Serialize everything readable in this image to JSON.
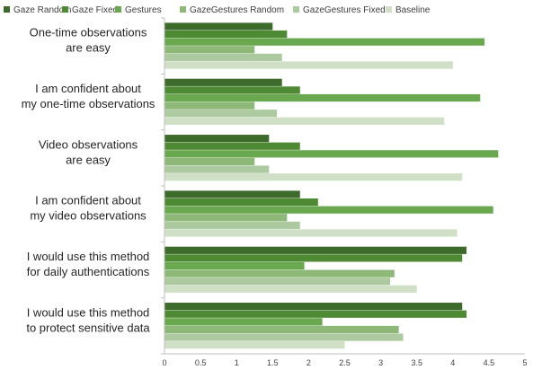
{
  "chart_data": {
    "type": "bar",
    "orientation": "horizontal",
    "categories": [
      [
        "One-time observations",
        "are easy"
      ],
      [
        "I am confident about",
        "my one-time observations"
      ],
      [
        "Video observations",
        "are easy"
      ],
      [
        "I am confident about",
        "my video observations"
      ],
      [
        "I would use this method",
        "for daily authentications"
      ],
      [
        "I would use this method",
        "to protect sensitive data"
      ]
    ],
    "series": [
      {
        "name": "Gaze Random",
        "color": "#3d6b2c",
        "values": [
          1.5,
          1.63,
          1.45,
          1.88,
          4.19,
          4.13
        ]
      },
      {
        "name": "Gaze Fixed",
        "color": "#4e8a34",
        "values": [
          1.7,
          1.88,
          1.88,
          2.13,
          4.13,
          4.19
        ]
      },
      {
        "name": "Gestures",
        "color": "#6aa84f",
        "values": [
          4.44,
          4.38,
          4.63,
          4.56,
          1.94,
          2.19
        ]
      },
      {
        "name": "GazeGestures Random",
        "color": "#8db878",
        "values": [
          1.25,
          1.25,
          1.25,
          1.7,
          3.19,
          3.25
        ]
      },
      {
        "name": "GazeGestures  Fixed",
        "color": "#adc99f",
        "values": [
          1.63,
          1.56,
          1.45,
          1.88,
          3.13,
          3.31
        ]
      },
      {
        "name": "Baseline",
        "color": "#cfe0c6",
        "values": [
          4.0,
          3.88,
          4.13,
          4.06,
          3.5,
          2.5
        ]
      }
    ],
    "xlim": [
      0,
      5
    ],
    "xticks": [
      "0",
      "0.5",
      "1",
      "1.5",
      "2",
      "2.5",
      "3",
      "3.5",
      "4",
      "4.5",
      "5"
    ],
    "legend_position": "top",
    "grid": false
  }
}
